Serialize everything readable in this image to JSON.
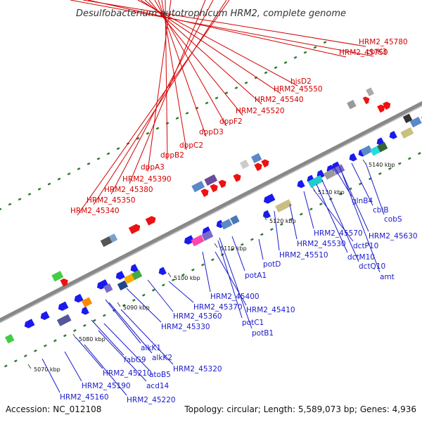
{
  "title": "Desulfobacterium autotrophicum HRM2, complete genome",
  "footer": {
    "accession": "Accession: NC_012108",
    "summary": "Topology: circular; Length: 5,589,073 bp; Genes: 4,936"
  },
  "colors": {
    "top_label": "#d40000",
    "bottom_label": "#1a1acc",
    "backbone": "#888888",
    "forward_gene": "#ee1111",
    "reverse_gene": "#1a1aee",
    "tick_dot": "#2a7a2a"
  },
  "tick_labels": [
    "5070 kbp",
    "5080 kbp",
    "5090 kbp",
    "5100 kbp",
    "5110 kbp",
    "5120 kbp",
    "5130 kbp",
    "5140 kbp"
  ],
  "top_labels": [
    "cbiK3",
    "HRM2_45780",
    "HRM2_45750",
    "hisD2",
    "HRM2_45550",
    "HRM2_45540",
    "HRM2_45520",
    "dppF2",
    "dppD3",
    "dppC2",
    "dppB2",
    "dppA3",
    "HRM2_45390",
    "HRM2_45380",
    "HRM2_45350",
    "HRM2_45340"
  ],
  "bottom_labels": [
    "HRM2_45160",
    "HRM2_45190",
    "HRM2_45220",
    "acd14",
    "HRM2_45210",
    "fabG9",
    "atoB5",
    "alkK2",
    "alkK1",
    "HRM2_45320",
    "HRM2_45330",
    "HRM2_45360",
    "HRM2_45370",
    "HRM2_45400",
    "HRM2_45410",
    "potC1",
    "potB1",
    "potA1",
    "potD",
    "HRM2_45510",
    "HRM2_45530",
    "HRM2_45570",
    "glnB4",
    "dctP10",
    "dctM10",
    "dctQ10",
    "amt",
    "cbiB",
    "cobS",
    "HRM2_45630"
  ]
}
